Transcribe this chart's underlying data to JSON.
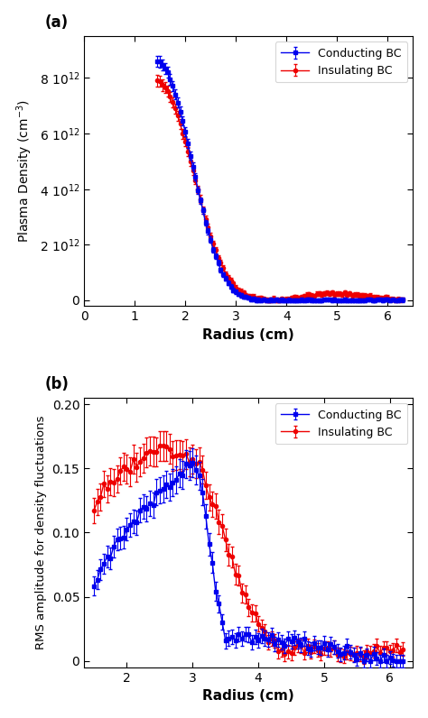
{
  "panel_a": {
    "title": "(a)",
    "xlabel": "Radius (cm)",
    "ylabel": "Plasma Density (cm$^{-3}$)",
    "xlim": [
      0,
      6.5
    ],
    "ylim": [
      -200000000000.0,
      9500000000000.0
    ],
    "yticks": [
      0,
      2000000000000.0,
      4000000000000.0,
      6000000000000.0,
      8000000000000.0
    ],
    "xticks": [
      0,
      1,
      2,
      3,
      4,
      5,
      6
    ],
    "blue_color": "#0000EE",
    "red_color": "#EE0000",
    "blue_label": "Conducting BC",
    "red_label": "Insulating BC",
    "blue_marker": "s",
    "red_marker": "o"
  },
  "panel_b": {
    "title": "(b)",
    "xlabel": "Radius (cm)",
    "ylabel": "RMS amplitude for density fluctuations",
    "xlim": [
      1.35,
      6.35
    ],
    "ylim": [
      -0.005,
      0.205
    ],
    "yticks": [
      0,
      0.05,
      0.1,
      0.15,
      0.2
    ],
    "xticks": [
      2,
      3,
      4,
      5,
      6
    ],
    "blue_color": "#0000EE",
    "red_color": "#EE0000",
    "blue_label": "Conducting BC",
    "red_label": "Insulating BC",
    "blue_marker": "s",
    "red_marker": "o"
  }
}
